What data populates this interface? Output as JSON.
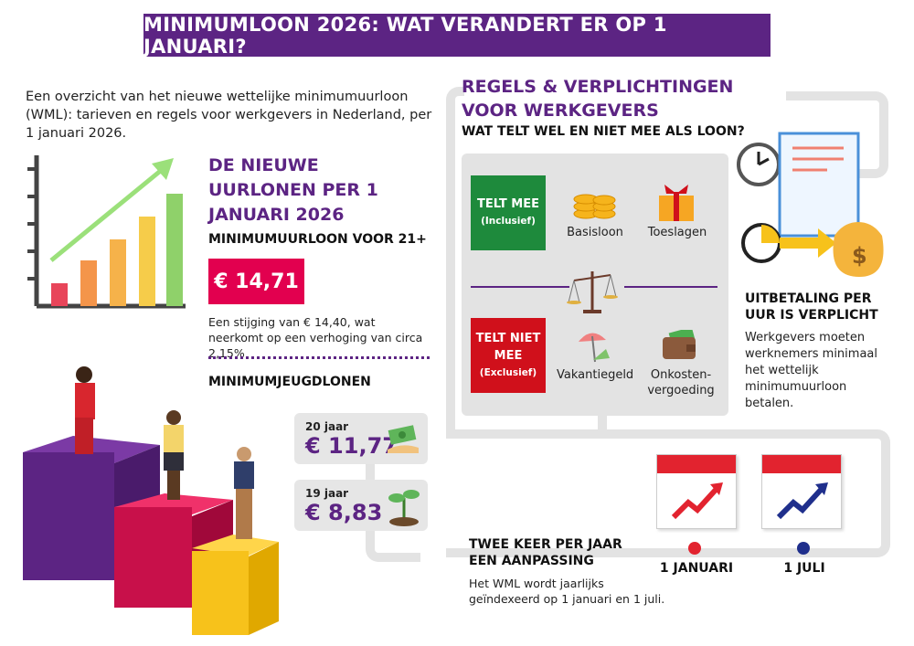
{
  "title": "MINIMUMLOON 2026: WAT VERANDERT ER OP 1 JANUARI?",
  "intro": "Een overzicht van het nieuwe wettelijke minimumuurloon (WML): tarieven en regels voor werkgevers in Nederland, per 1 januari 2026.",
  "wages": {
    "heading": "DE NIEUWE UURLONEN PER 1 JANUARI 2026",
    "adult_label": "MINIMUMUURLOON VOOR 21+",
    "adult_value": "€ 14,71",
    "adult_note": "Een stijging van € 14,40, wat neerkomt op een verhoging van circa 2,15%",
    "youth_heading": "MINIMUMJEUGDLONEN",
    "youth": [
      {
        "age": "20 jaar",
        "value": "€ 11,77",
        "icon": "money-hand-icon"
      },
      {
        "age": "19 jaar",
        "value": "€ 8,83",
        "icon": "sprout-icon"
      }
    ]
  },
  "rules": {
    "heading": "REGELS & VERPLICHTINGEN VOOR WERKGEVERS",
    "subheading": "WAT TELT WEL EN NIET MEE ALS LOON?",
    "included": {
      "title": "TELT MEE",
      "sub": "(Inclusief)",
      "items": [
        "Basisloon",
        "Toeslagen"
      ],
      "color": "#1e8a3c"
    },
    "excluded": {
      "title": "TELT NIET MEE",
      "sub": "(Exclusief)",
      "items": [
        "Vakantiegeld",
        "Onkosten-vergoeding"
      ],
      "color": "#d0101b"
    }
  },
  "payment": {
    "heading": "UITBETALING PER UUR IS VERPLICHT",
    "text": "Werkgevers moeten werknemers minimaal het wettelijk minimumuurloon betalen."
  },
  "indexation": {
    "heading": "TWEE KEER PER JAAR EEN AANPASSING",
    "text": "Het WML wordt jaarlijks geïndexeerd op 1 januari en 1 juli.",
    "dates": [
      {
        "label": "1 JANUARI",
        "color": "#e2232f"
      },
      {
        "label": "1 JULI",
        "color": "#1f2f8c"
      }
    ]
  },
  "colors": {
    "purple": "#5c2483",
    "pink": "#e2004f",
    "panel": "#e3e3e3"
  }
}
